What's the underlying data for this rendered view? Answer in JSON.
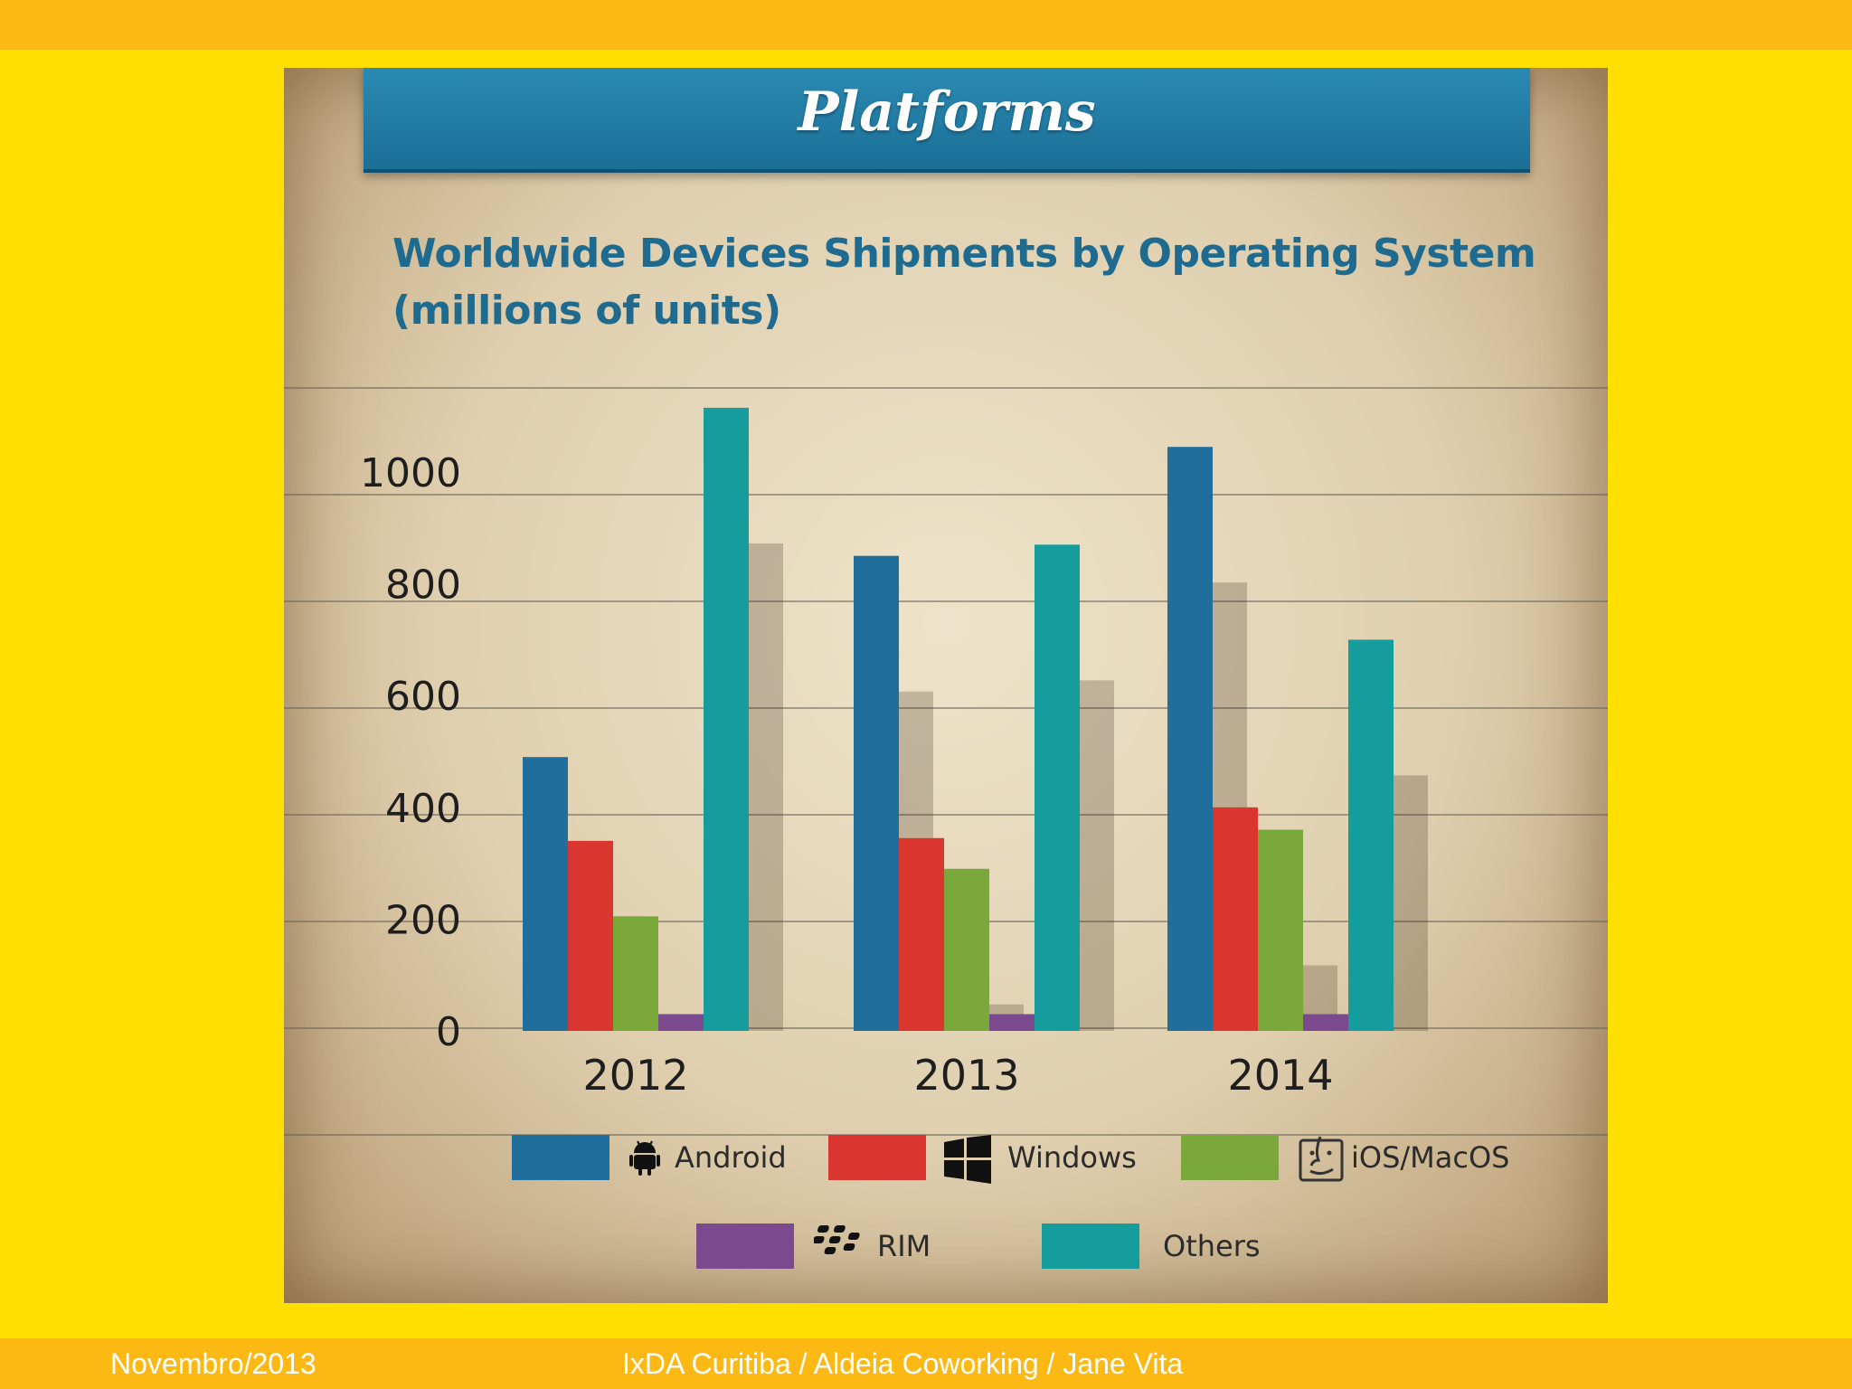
{
  "slide": {
    "heading": "Platforms",
    "footer_date": "Novembro/2013",
    "footer_credit": "IxDA Curitiba / Aldeia Coworking / Jane Vita"
  },
  "chart_data": {
    "type": "bar",
    "title_line1": "Worldwide Devices Shipments by Operating System",
    "title_line2": "(millions of units)",
    "categories": [
      "2012",
      "2013",
      "2014"
    ],
    "series": [
      {
        "name": "Android",
        "color": "#1F6E9C",
        "icon": "android-icon",
        "values": [
          490,
          850,
          1045
        ]
      },
      {
        "name": "Windows",
        "color": "#D8362E",
        "icon": "windows-icon",
        "values": [
          340,
          345,
          400
        ]
      },
      {
        "name": "iOS/MacOS",
        "color": "#7AA83A",
        "icon": "apple-finder-icon",
        "values": [
          205,
          290,
          360
        ]
      },
      {
        "name": "RIM",
        "color": "#7B4A8E",
        "icon": "blackberry-icon",
        "values": [
          30,
          30,
          30
        ]
      },
      {
        "name": "Others",
        "color": "#159C9C",
        "icon": "",
        "values": [
          1115,
          870,
          700
        ]
      }
    ],
    "y_ticks": [
      0,
      200,
      400,
      600,
      800,
      1000
    ],
    "ylim": [
      0,
      1200
    ],
    "grid": true,
    "legend_position": "bottom"
  }
}
